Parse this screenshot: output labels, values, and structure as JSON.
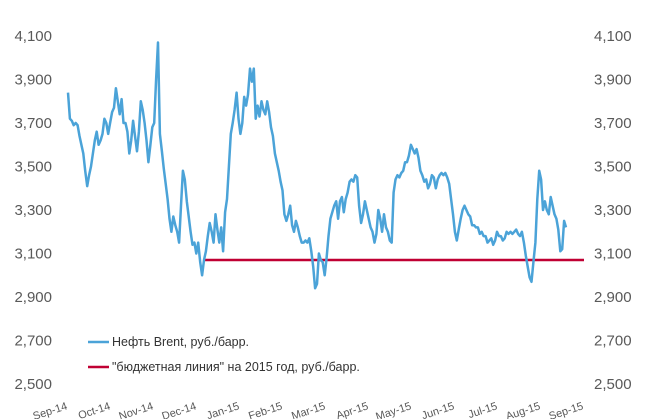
{
  "chart_data": {
    "type": "line",
    "y_axis": {
      "min": 2500,
      "max": 4100,
      "ticks": [
        "2,500",
        "2,700",
        "2,900",
        "3,100",
        "3,300",
        "3,500",
        "3,700",
        "3,900",
        "4,100"
      ],
      "tick_values": [
        2500,
        2700,
        2900,
        3100,
        3300,
        3500,
        3700,
        3900,
        4100
      ],
      "mirrored_right": true
    },
    "x_axis": {
      "labels": [
        "Sep-14",
        "Oct-14",
        "Nov-14",
        "Dec-14",
        "Jan-15",
        "Feb-15",
        "Mar-15",
        "Apr-15",
        "May-15",
        "Jun-15",
        "Jul-15",
        "Aug-15",
        "Sep-15"
      ],
      "rotated": true
    },
    "grid": false,
    "legend_position": "bottom-left",
    "series": [
      {
        "name": "Нефть Brent, руб./барр.",
        "color": "#4ba3d8",
        "values": [
          3840,
          3720,
          3710,
          3690,
          3700,
          3690,
          3640,
          3600,
          3560,
          3480,
          3410,
          3460,
          3500,
          3560,
          3620,
          3660,
          3600,
          3620,
          3650,
          3720,
          3700,
          3650,
          3700,
          3750,
          3770,
          3860,
          3800,
          3740,
          3810,
          3700,
          3700,
          3660,
          3560,
          3620,
          3710,
          3640,
          3570,
          3660,
          3800,
          3760,
          3700,
          3620,
          3520,
          3600,
          3680,
          3700,
          3900,
          4070,
          3650,
          3570,
          3490,
          3420,
          3350,
          3260,
          3200,
          3270,
          3230,
          3200,
          3150,
          3320,
          3480,
          3440,
          3340,
          3270,
          3200,
          3140,
          3150,
          3100,
          3150,
          3060,
          3000,
          3070,
          3110,
          3180,
          3240,
          3200,
          3150,
          3280,
          3210,
          3150,
          3220,
          3110,
          3290,
          3350,
          3500,
          3650,
          3700,
          3760,
          3840,
          3720,
          3650,
          3700,
          3820,
          3780,
          3830,
          3950,
          3890,
          3950,
          3720,
          3780,
          3730,
          3800,
          3760,
          3740,
          3800,
          3750,
          3680,
          3640,
          3560,
          3520,
          3480,
          3430,
          3390,
          3280,
          3250,
          3280,
          3320,
          3230,
          3200,
          3250,
          3220,
          3180,
          3150,
          3150,
          3160,
          3150,
          3170,
          3110,
          3040,
          2940,
          2960,
          3100,
          3070,
          3060,
          3000,
          3080,
          3180,
          3260,
          3290,
          3320,
          3340,
          3260,
          3340,
          3360,
          3290,
          3350,
          3380,
          3430,
          3440,
          3430,
          3460,
          3450,
          3320,
          3240,
          3280,
          3340,
          3300,
          3260,
          3220,
          3200,
          3150,
          3190,
          3300,
          3260,
          3200,
          3280,
          3220,
          3200,
          3160,
          3150,
          3380,
          3440,
          3460,
          3450,
          3470,
          3480,
          3520,
          3520,
          3550,
          3600,
          3580,
          3560,
          3580,
          3540,
          3480,
          3460,
          3430,
          3440,
          3400,
          3420,
          3460,
          3450,
          3400,
          3440,
          3460,
          3470,
          3460,
          3470,
          3450,
          3420,
          3350,
          3280,
          3200,
          3160,
          3210,
          3260,
          3300,
          3320,
          3300,
          3280,
          3270,
          3230,
          3230,
          3220,
          3220,
          3190,
          3200,
          3180,
          3180,
          3150,
          3160,
          3170,
          3140,
          3160,
          3200,
          3180,
          3180,
          3160,
          3170,
          3200,
          3190,
          3200,
          3190,
          3200,
          3210,
          3190,
          3180,
          3200,
          3150,
          3090,
          3040,
          2990,
          2970,
          3060,
          3150,
          3350,
          3480,
          3440,
          3300,
          3340,
          3300,
          3280,
          3360,
          3320,
          3280,
          3260,
          3210,
          3110,
          3120,
          3250,
          3220
        ]
      },
      {
        "name": "\"бюджетная линия\" на 2015 год, руб./барр.",
        "color": "#c00033",
        "value": 3070,
        "x_range": [
          "Dec-14",
          "Sep-15"
        ]
      }
    ]
  },
  "legend": [
    {
      "label": "Нефть Brent, руб./барр.",
      "color": "#4ba3d8"
    },
    {
      "label": "\"бюджетная линия\" на 2015 год, руб./барр.",
      "color": "#c00033"
    }
  ]
}
